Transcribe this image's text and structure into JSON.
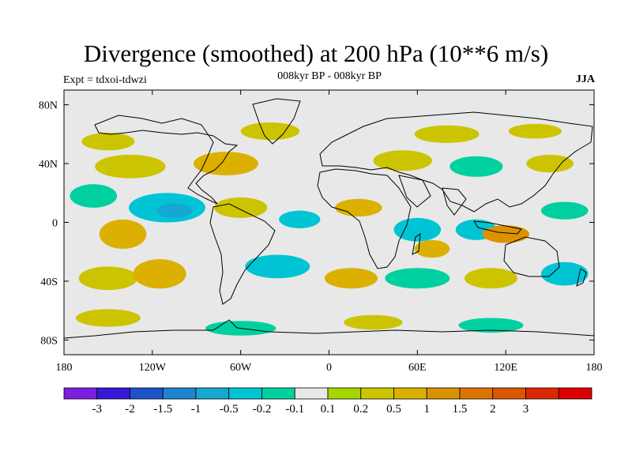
{
  "header": {
    "title": "Divergence (smoothed) at 200 hPa (10**6 m/s)",
    "subtitle": "008kyr BP - 008kyr BP",
    "experiment": "Expt = tdxoi-tdwzi",
    "season": "JJA"
  },
  "map": {
    "projection": "cylindrical-equidistant",
    "lon_range": [
      -180,
      180
    ],
    "lat_range": [
      -90,
      90
    ],
    "background_color": "#e8e8e8",
    "lat_ticks": [
      {
        "lat": 80,
        "label": "80N"
      },
      {
        "lat": 40,
        "label": "40N"
      },
      {
        "lat": 0,
        "label": "0"
      },
      {
        "lat": -40,
        "label": "40S"
      },
      {
        "lat": -80,
        "label": "80S"
      }
    ],
    "lon_ticks": [
      {
        "lon": -180,
        "label": "180"
      },
      {
        "lon": -120,
        "label": "120W"
      },
      {
        "lon": -60,
        "label": "60W"
      },
      {
        "lon": 0,
        "label": "0"
      },
      {
        "lon": 60,
        "label": "60E"
      },
      {
        "lon": 120,
        "label": "120E"
      },
      {
        "lon": 180,
        "label": "180"
      }
    ],
    "field_blobs": [
      {
        "lon": -150,
        "lat": 55,
        "rx": 18,
        "ry": 6,
        "level": "0.2"
      },
      {
        "lon": -100,
        "lat": 52,
        "rx": 16,
        "ry": 5,
        "level": "-0.1"
      },
      {
        "lon": -40,
        "lat": 62,
        "rx": 20,
        "ry": 6,
        "level": "0.2"
      },
      {
        "lon": 10,
        "lat": 60,
        "rx": 14,
        "ry": 5,
        "level": "-0.1"
      },
      {
        "lon": 80,
        "lat": 60,
        "rx": 22,
        "ry": 6,
        "level": "0.2"
      },
      {
        "lon": 140,
        "lat": 62,
        "rx": 18,
        "ry": 5,
        "level": "0.2"
      },
      {
        "lon": -135,
        "lat": 38,
        "rx": 24,
        "ry": 8,
        "level": "0.2"
      },
      {
        "lon": -70,
        "lat": 40,
        "rx": 22,
        "ry": 8,
        "level": "0.5"
      },
      {
        "lon": -20,
        "lat": 35,
        "rx": 14,
        "ry": 6,
        "level": "-0.1"
      },
      {
        "lon": 50,
        "lat": 42,
        "rx": 20,
        "ry": 7,
        "level": "0.2"
      },
      {
        "lon": 100,
        "lat": 38,
        "rx": 18,
        "ry": 7,
        "level": "-0.2"
      },
      {
        "lon": 150,
        "lat": 40,
        "rx": 16,
        "ry": 6,
        "level": "0.2"
      },
      {
        "lon": -160,
        "lat": 18,
        "rx": 16,
        "ry": 8,
        "level": "-0.2"
      },
      {
        "lon": -110,
        "lat": 10,
        "rx": 26,
        "ry": 10,
        "level": "-0.5"
      },
      {
        "lon": -105,
        "lat": 8,
        "rx": 12,
        "ry": 5,
        "level": "-1"
      },
      {
        "lon": -140,
        "lat": -8,
        "rx": 16,
        "ry": 10,
        "level": "0.5"
      },
      {
        "lon": -60,
        "lat": 10,
        "rx": 18,
        "ry": 7,
        "level": "0.2"
      },
      {
        "lon": -20,
        "lat": 2,
        "rx": 14,
        "ry": 6,
        "level": "-0.5"
      },
      {
        "lon": 20,
        "lat": 10,
        "rx": 16,
        "ry": 6,
        "level": "0.5"
      },
      {
        "lon": 60,
        "lat": -5,
        "rx": 16,
        "ry": 8,
        "level": "-0.5"
      },
      {
        "lon": 70,
        "lat": -18,
        "rx": 12,
        "ry": 6,
        "level": "0.5"
      },
      {
        "lon": 100,
        "lat": -5,
        "rx": 14,
        "ry": 7,
        "level": "-0.5"
      },
      {
        "lon": 120,
        "lat": -8,
        "rx": 16,
        "ry": 6,
        "level": "1"
      },
      {
        "lon": 160,
        "lat": 8,
        "rx": 16,
        "ry": 6,
        "level": "-0.2"
      },
      {
        "lon": -150,
        "lat": -38,
        "rx": 20,
        "ry": 8,
        "level": "0.2"
      },
      {
        "lon": -115,
        "lat": -35,
        "rx": 18,
        "ry": 10,
        "level": "0.5"
      },
      {
        "lon": -35,
        "lat": -30,
        "rx": 22,
        "ry": 8,
        "level": "-0.5"
      },
      {
        "lon": 15,
        "lat": -38,
        "rx": 18,
        "ry": 7,
        "level": "0.5"
      },
      {
        "lon": 60,
        "lat": -38,
        "rx": 22,
        "ry": 7,
        "level": "-0.2"
      },
      {
        "lon": 110,
        "lat": -38,
        "rx": 18,
        "ry": 7,
        "level": "0.2"
      },
      {
        "lon": 160,
        "lat": -35,
        "rx": 16,
        "ry": 8,
        "level": "-0.5"
      },
      {
        "lon": -150,
        "lat": -65,
        "rx": 22,
        "ry": 6,
        "level": "0.2"
      },
      {
        "lon": -60,
        "lat": -72,
        "rx": 24,
        "ry": 5,
        "level": "-0.2"
      },
      {
        "lon": 30,
        "lat": -68,
        "rx": 20,
        "ry": 5,
        "level": "0.2"
      },
      {
        "lon": 110,
        "lat": -70,
        "rx": 22,
        "ry": 5,
        "level": "-0.2"
      }
    ]
  },
  "colorbar": {
    "colors": [
      "#7d1ee0",
      "#3718d8",
      "#1c52cc",
      "#1e84d2",
      "#14a8d2",
      "#00c4d4",
      "#00d0a0",
      "#e8e8e8",
      "#a6d600",
      "#ccc400",
      "#dcb000",
      "#dc9200",
      "#dc7400",
      "#dc5600",
      "#dc2800",
      "#dc0000"
    ],
    "labels": [
      "-3",
      "-2",
      "-1.5",
      "-1",
      "-0.5",
      "-0.2",
      "-0.1",
      "0.1",
      "0.2",
      "0.5",
      "1",
      "1.5",
      "2",
      "3"
    ]
  }
}
